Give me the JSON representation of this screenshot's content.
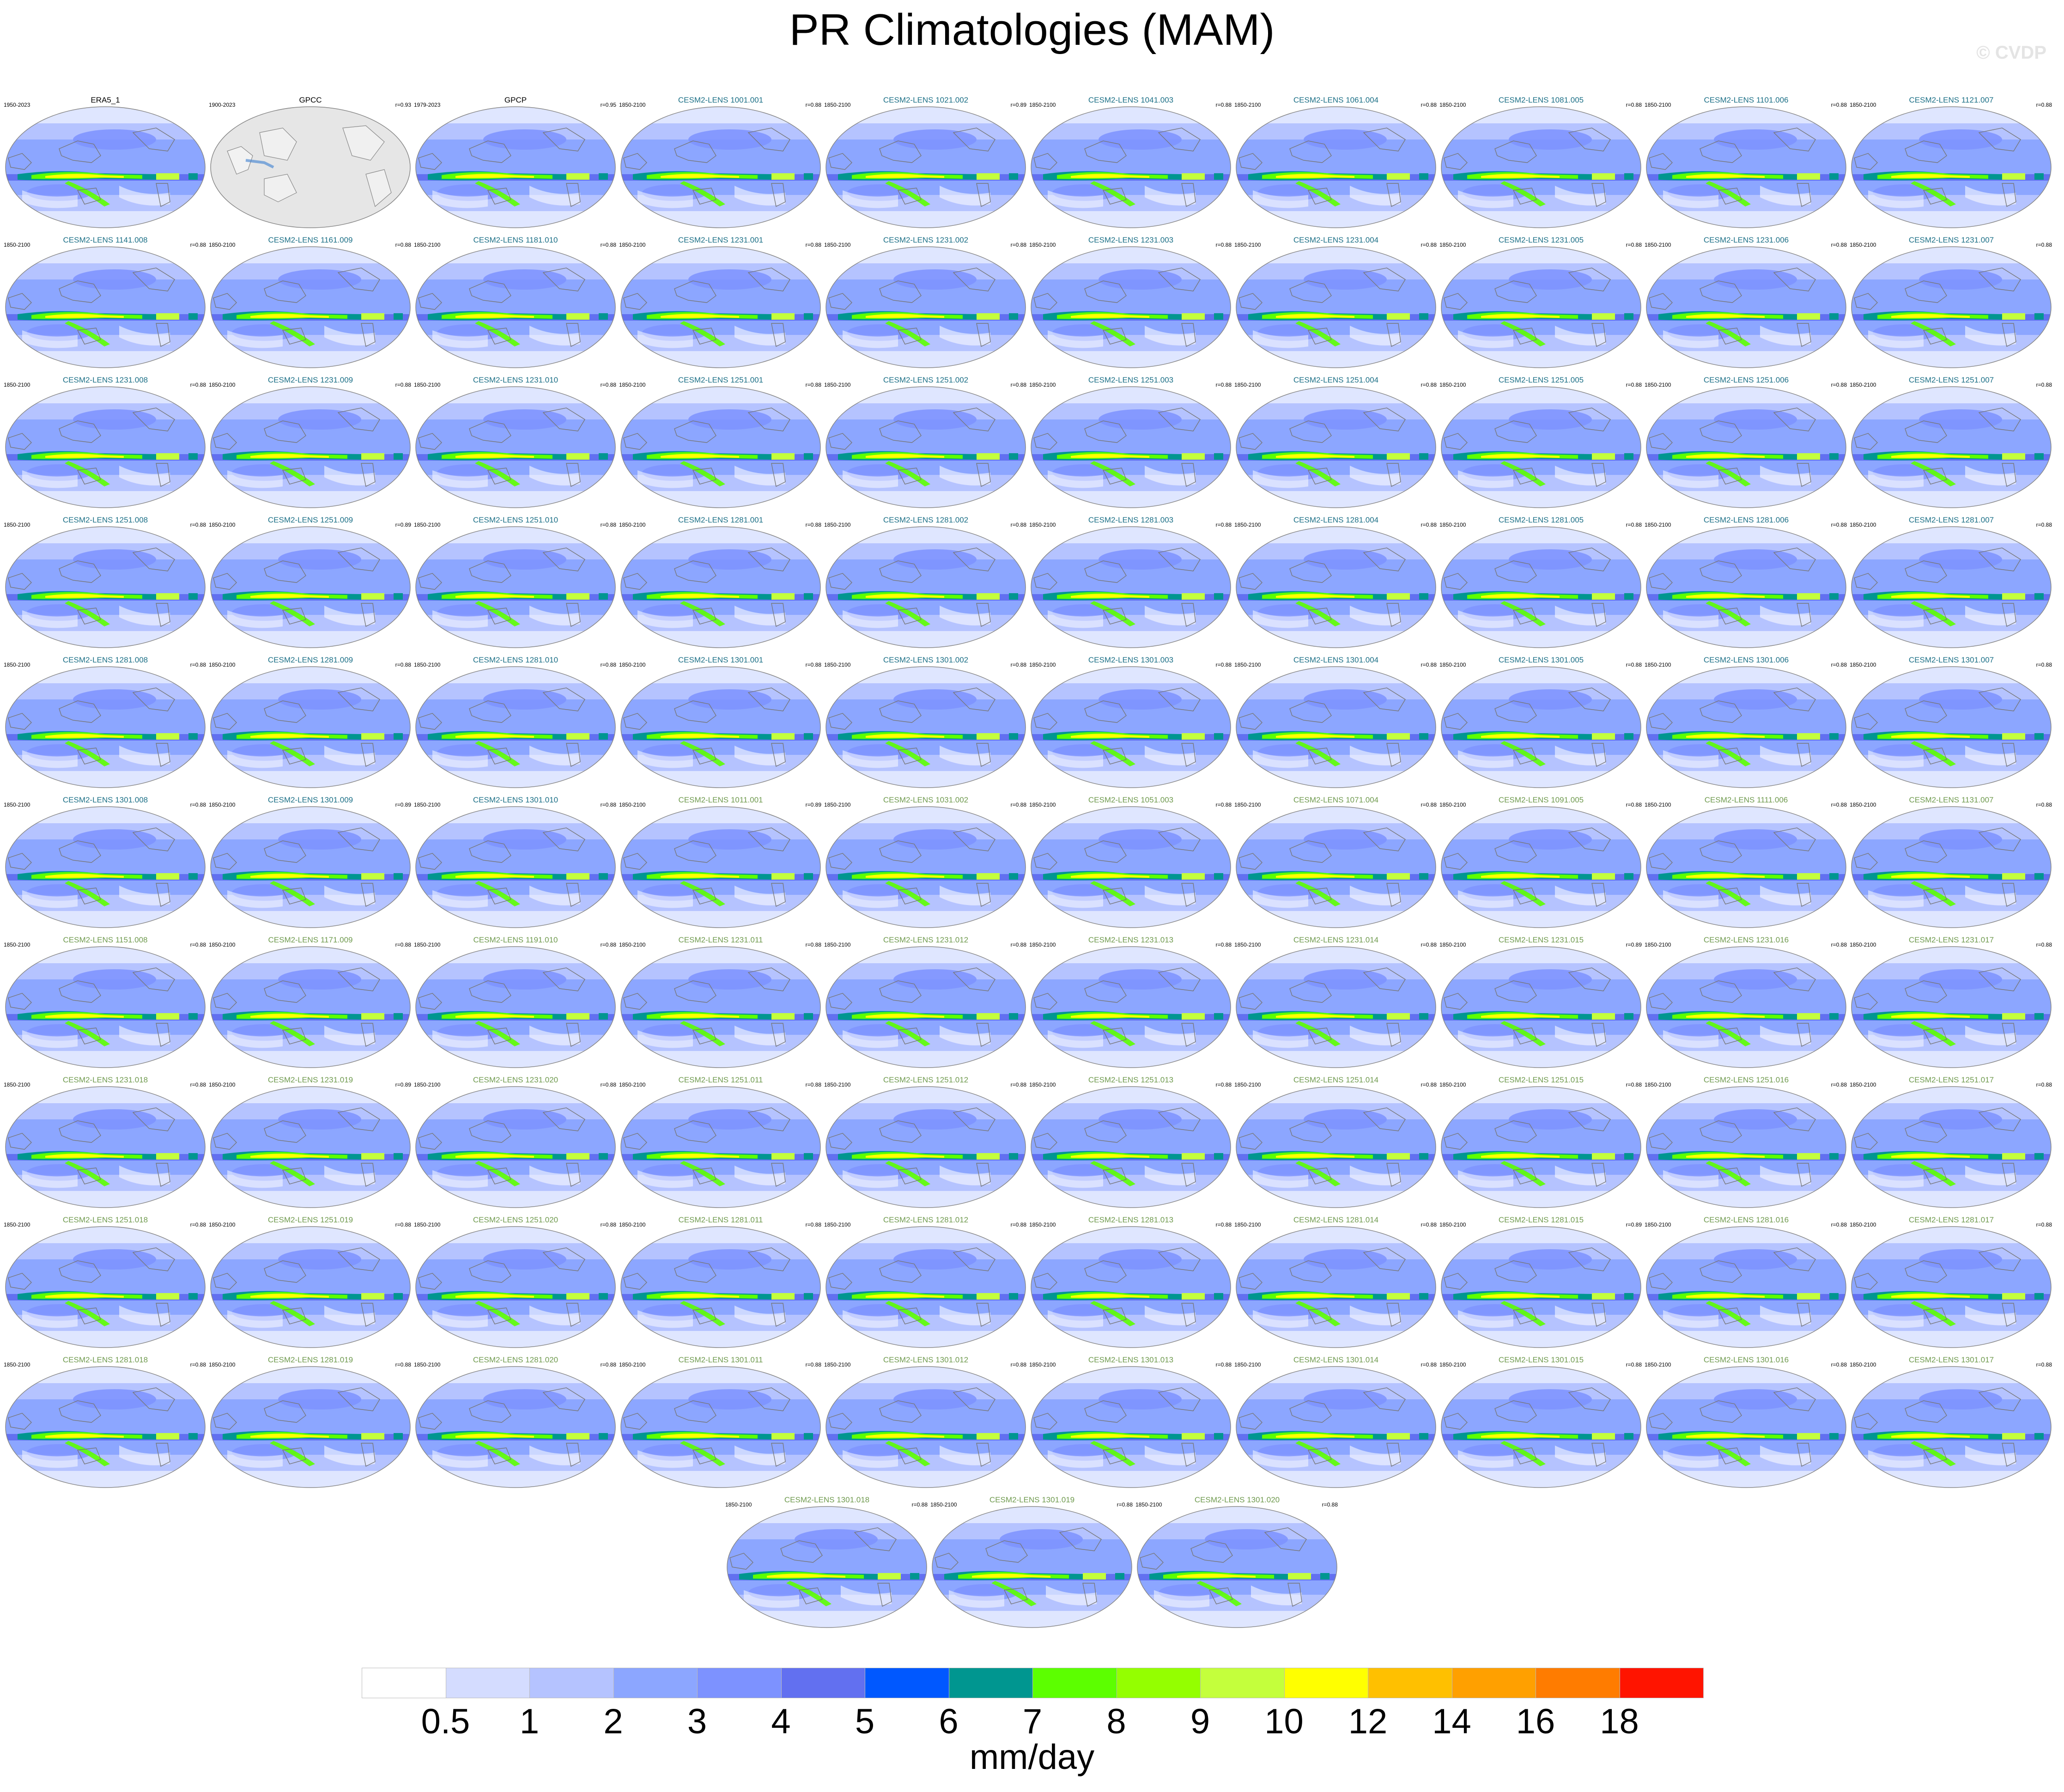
{
  "title": "PR Climatologies (MAM)",
  "watermark": "© CVDP",
  "colors": {
    "obs_title": "#000000",
    "model_title_a": "#1b6f86",
    "model_title_b": "#6f9a4e",
    "land_gray": "#e6e6e6",
    "ocean_base": "#8ca6ff"
  },
  "chart_data": {
    "type": "heatmap",
    "description_type": "small-multiple global precipitation maps",
    "panels": [
      {
        "title": "ERA5_1",
        "years": "1950-2023",
        "r": "",
        "kind": "obs"
      },
      {
        "title": "GPCC",
        "years": "1900-2023",
        "r": "r=0.93",
        "kind": "land"
      },
      {
        "title": "GPCP",
        "years": "1979-2023",
        "r": "r=0.95",
        "kind": "obs"
      },
      {
        "title": "CESM2-LENS 1001.001",
        "years": "1850-2100",
        "r": "r=0.88",
        "kind": "a"
      },
      {
        "title": "CESM2-LENS 1021.002",
        "years": "1850-2100",
        "r": "r=0.89",
        "kind": "a"
      },
      {
        "title": "CESM2-LENS 1041.003",
        "years": "1850-2100",
        "r": "r=0.88",
        "kind": "a"
      },
      {
        "title": "CESM2-LENS 1061.004",
        "years": "1850-2100",
        "r": "r=0.88",
        "kind": "a"
      },
      {
        "title": "CESM2-LENS 1081.005",
        "years": "1850-2100",
        "r": "r=0.88",
        "kind": "a"
      },
      {
        "title": "CESM2-LENS 1101.006",
        "years": "1850-2100",
        "r": "r=0.88",
        "kind": "a"
      },
      {
        "title": "CESM2-LENS 1121.007",
        "years": "1850-2100",
        "r": "r=0.88",
        "kind": "a"
      },
      {
        "title": "CESM2-LENS 1141.008",
        "years": "1850-2100",
        "r": "r=0.88",
        "kind": "a"
      },
      {
        "title": "CESM2-LENS 1161.009",
        "years": "1850-2100",
        "r": "r=0.88",
        "kind": "a"
      },
      {
        "title": "CESM2-LENS 1181.010",
        "years": "1850-2100",
        "r": "r=0.88",
        "kind": "a"
      },
      {
        "title": "CESM2-LENS 1231.001",
        "years": "1850-2100",
        "r": "r=0.88",
        "kind": "a"
      },
      {
        "title": "CESM2-LENS 1231.002",
        "years": "1850-2100",
        "r": "r=0.88",
        "kind": "a"
      },
      {
        "title": "CESM2-LENS 1231.003",
        "years": "1850-2100",
        "r": "r=0.88",
        "kind": "a"
      },
      {
        "title": "CESM2-LENS 1231.004",
        "years": "1850-2100",
        "r": "r=0.88",
        "kind": "a"
      },
      {
        "title": "CESM2-LENS 1231.005",
        "years": "1850-2100",
        "r": "r=0.88",
        "kind": "a"
      },
      {
        "title": "CESM2-LENS 1231.006",
        "years": "1850-2100",
        "r": "r=0.88",
        "kind": "a"
      },
      {
        "title": "CESM2-LENS 1231.007",
        "years": "1850-2100",
        "r": "r=0.88",
        "kind": "a"
      },
      {
        "title": "CESM2-LENS 1231.008",
        "years": "1850-2100",
        "r": "r=0.88",
        "kind": "a"
      },
      {
        "title": "CESM2-LENS 1231.009",
        "years": "1850-2100",
        "r": "r=0.88",
        "kind": "a"
      },
      {
        "title": "CESM2-LENS 1231.010",
        "years": "1850-2100",
        "r": "r=0.88",
        "kind": "a"
      },
      {
        "title": "CESM2-LENS 1251.001",
        "years": "1850-2100",
        "r": "r=0.88",
        "kind": "a"
      },
      {
        "title": "CESM2-LENS 1251.002",
        "years": "1850-2100",
        "r": "r=0.88",
        "kind": "a"
      },
      {
        "title": "CESM2-LENS 1251.003",
        "years": "1850-2100",
        "r": "r=0.88",
        "kind": "a"
      },
      {
        "title": "CESM2-LENS 1251.004",
        "years": "1850-2100",
        "r": "r=0.88",
        "kind": "a"
      },
      {
        "title": "CESM2-LENS 1251.005",
        "years": "1850-2100",
        "r": "r=0.88",
        "kind": "a"
      },
      {
        "title": "CESM2-LENS 1251.006",
        "years": "1850-2100",
        "r": "r=0.88",
        "kind": "a"
      },
      {
        "title": "CESM2-LENS 1251.007",
        "years": "1850-2100",
        "r": "r=0.88",
        "kind": "a"
      },
      {
        "title": "CESM2-LENS 1251.008",
        "years": "1850-2100",
        "r": "r=0.88",
        "kind": "a"
      },
      {
        "title": "CESM2-LENS 1251.009",
        "years": "1850-2100",
        "r": "r=0.89",
        "kind": "a"
      },
      {
        "title": "CESM2-LENS 1251.010",
        "years": "1850-2100",
        "r": "r=0.88",
        "kind": "a"
      },
      {
        "title": "CESM2-LENS 1281.001",
        "years": "1850-2100",
        "r": "r=0.88",
        "kind": "a"
      },
      {
        "title": "CESM2-LENS 1281.002",
        "years": "1850-2100",
        "r": "r=0.88",
        "kind": "a"
      },
      {
        "title": "CESM2-LENS 1281.003",
        "years": "1850-2100",
        "r": "r=0.88",
        "kind": "a"
      },
      {
        "title": "CESM2-LENS 1281.004",
        "years": "1850-2100",
        "r": "r=0.88",
        "kind": "a"
      },
      {
        "title": "CESM2-LENS 1281.005",
        "years": "1850-2100",
        "r": "r=0.88",
        "kind": "a"
      },
      {
        "title": "CESM2-LENS 1281.006",
        "years": "1850-2100",
        "r": "r=0.88",
        "kind": "a"
      },
      {
        "title": "CESM2-LENS 1281.007",
        "years": "1850-2100",
        "r": "r=0.88",
        "kind": "a"
      },
      {
        "title": "CESM2-LENS 1281.008",
        "years": "1850-2100",
        "r": "r=0.88",
        "kind": "a"
      },
      {
        "title": "CESM2-LENS 1281.009",
        "years": "1850-2100",
        "r": "r=0.88",
        "kind": "a"
      },
      {
        "title": "CESM2-LENS 1281.010",
        "years": "1850-2100",
        "r": "r=0.88",
        "kind": "a"
      },
      {
        "title": "CESM2-LENS 1301.001",
        "years": "1850-2100",
        "r": "r=0.88",
        "kind": "a"
      },
      {
        "title": "CESM2-LENS 1301.002",
        "years": "1850-2100",
        "r": "r=0.88",
        "kind": "a"
      },
      {
        "title": "CESM2-LENS 1301.003",
        "years": "1850-2100",
        "r": "r=0.88",
        "kind": "a"
      },
      {
        "title": "CESM2-LENS 1301.004",
        "years": "1850-2100",
        "r": "r=0.88",
        "kind": "a"
      },
      {
        "title": "CESM2-LENS 1301.005",
        "years": "1850-2100",
        "r": "r=0.88",
        "kind": "a"
      },
      {
        "title": "CESM2-LENS 1301.006",
        "years": "1850-2100",
        "r": "r=0.88",
        "kind": "a"
      },
      {
        "title": "CESM2-LENS 1301.007",
        "years": "1850-2100",
        "r": "r=0.88",
        "kind": "a"
      },
      {
        "title": "CESM2-LENS 1301.008",
        "years": "1850-2100",
        "r": "r=0.88",
        "kind": "a"
      },
      {
        "title": "CESM2-LENS 1301.009",
        "years": "1850-2100",
        "r": "r=0.89",
        "kind": "a"
      },
      {
        "title": "CESM2-LENS 1301.010",
        "years": "1850-2100",
        "r": "r=0.88",
        "kind": "a"
      },
      {
        "title": "CESM2-LENS 1011.001",
        "years": "1850-2100",
        "r": "r=0.89",
        "kind": "b"
      },
      {
        "title": "CESM2-LENS 1031.002",
        "years": "1850-2100",
        "r": "r=0.88",
        "kind": "b"
      },
      {
        "title": "CESM2-LENS 1051.003",
        "years": "1850-2100",
        "r": "r=0.88",
        "kind": "b"
      },
      {
        "title": "CESM2-LENS 1071.004",
        "years": "1850-2100",
        "r": "r=0.88",
        "kind": "b"
      },
      {
        "title": "CESM2-LENS 1091.005",
        "years": "1850-2100",
        "r": "r=0.88",
        "kind": "b"
      },
      {
        "title": "CESM2-LENS 1111.006",
        "years": "1850-2100",
        "r": "r=0.88",
        "kind": "b"
      },
      {
        "title": "CESM2-LENS 1131.007",
        "years": "1850-2100",
        "r": "r=0.88",
        "kind": "b"
      },
      {
        "title": "CESM2-LENS 1151.008",
        "years": "1850-2100",
        "r": "r=0.88",
        "kind": "b"
      },
      {
        "title": "CESM2-LENS 1171.009",
        "years": "1850-2100",
        "r": "r=0.88",
        "kind": "b"
      },
      {
        "title": "CESM2-LENS 1191.010",
        "years": "1850-2100",
        "r": "r=0.88",
        "kind": "b"
      },
      {
        "title": "CESM2-LENS 1231.011",
        "years": "1850-2100",
        "r": "r=0.88",
        "kind": "b"
      },
      {
        "title": "CESM2-LENS 1231.012",
        "years": "1850-2100",
        "r": "r=0.88",
        "kind": "b"
      },
      {
        "title": "CESM2-LENS 1231.013",
        "years": "1850-2100",
        "r": "r=0.88",
        "kind": "b"
      },
      {
        "title": "CESM2-LENS 1231.014",
        "years": "1850-2100",
        "r": "r=0.88",
        "kind": "b"
      },
      {
        "title": "CESM2-LENS 1231.015",
        "years": "1850-2100",
        "r": "r=0.89",
        "kind": "b"
      },
      {
        "title": "CESM2-LENS 1231.016",
        "years": "1850-2100",
        "r": "r=0.88",
        "kind": "b"
      },
      {
        "title": "CESM2-LENS 1231.017",
        "years": "1850-2100",
        "r": "r=0.88",
        "kind": "b"
      },
      {
        "title": "CESM2-LENS 1231.018",
        "years": "1850-2100",
        "r": "r=0.88",
        "kind": "b"
      },
      {
        "title": "CESM2-LENS 1231.019",
        "years": "1850-2100",
        "r": "r=0.89",
        "kind": "b"
      },
      {
        "title": "CESM2-LENS 1231.020",
        "years": "1850-2100",
        "r": "r=0.88",
        "kind": "b"
      },
      {
        "title": "CESM2-LENS 1251.011",
        "years": "1850-2100",
        "r": "r=0.88",
        "kind": "b"
      },
      {
        "title": "CESM2-LENS 1251.012",
        "years": "1850-2100",
        "r": "r=0.88",
        "kind": "b"
      },
      {
        "title": "CESM2-LENS 1251.013",
        "years": "1850-2100",
        "r": "r=0.88",
        "kind": "b"
      },
      {
        "title": "CESM2-LENS 1251.014",
        "years": "1850-2100",
        "r": "r=0.88",
        "kind": "b"
      },
      {
        "title": "CESM2-LENS 1251.015",
        "years": "1850-2100",
        "r": "r=0.88",
        "kind": "b"
      },
      {
        "title": "CESM2-LENS 1251.016",
        "years": "1850-2100",
        "r": "r=0.88",
        "kind": "b"
      },
      {
        "title": "CESM2-LENS 1251.017",
        "years": "1850-2100",
        "r": "r=0.88",
        "kind": "b"
      },
      {
        "title": "CESM2-LENS 1251.018",
        "years": "1850-2100",
        "r": "r=0.88",
        "kind": "b"
      },
      {
        "title": "CESM2-LENS 1251.019",
        "years": "1850-2100",
        "r": "r=0.88",
        "kind": "b"
      },
      {
        "title": "CESM2-LENS 1251.020",
        "years": "1850-2100",
        "r": "r=0.88",
        "kind": "b"
      },
      {
        "title": "CESM2-LENS 1281.011",
        "years": "1850-2100",
        "r": "r=0.88",
        "kind": "b"
      },
      {
        "title": "CESM2-LENS 1281.012",
        "years": "1850-2100",
        "r": "r=0.88",
        "kind": "b"
      },
      {
        "title": "CESM2-LENS 1281.013",
        "years": "1850-2100",
        "r": "r=0.88",
        "kind": "b"
      },
      {
        "title": "CESM2-LENS 1281.014",
        "years": "1850-2100",
        "r": "r=0.88",
        "kind": "b"
      },
      {
        "title": "CESM2-LENS 1281.015",
        "years": "1850-2100",
        "r": "r=0.89",
        "kind": "b"
      },
      {
        "title": "CESM2-LENS 1281.016",
        "years": "1850-2100",
        "r": "r=0.88",
        "kind": "b"
      },
      {
        "title": "CESM2-LENS 1281.017",
        "years": "1850-2100",
        "r": "r=0.88",
        "kind": "b"
      },
      {
        "title": "CESM2-LENS 1281.018",
        "years": "1850-2100",
        "r": "r=0.88",
        "kind": "b"
      },
      {
        "title": "CESM2-LENS 1281.019",
        "years": "1850-2100",
        "r": "r=0.88",
        "kind": "b"
      },
      {
        "title": "CESM2-LENS 1281.020",
        "years": "1850-2100",
        "r": "r=0.88",
        "kind": "b"
      },
      {
        "title": "CESM2-LENS 1301.011",
        "years": "1850-2100",
        "r": "r=0.88",
        "kind": "b"
      },
      {
        "title": "CESM2-LENS 1301.012",
        "years": "1850-2100",
        "r": "r=0.88",
        "kind": "b"
      },
      {
        "title": "CESM2-LENS 1301.013",
        "years": "1850-2100",
        "r": "r=0.88",
        "kind": "b"
      },
      {
        "title": "CESM2-LENS 1301.014",
        "years": "1850-2100",
        "r": "r=0.88",
        "kind": "b"
      },
      {
        "title": "CESM2-LENS 1301.015",
        "years": "1850-2100",
        "r": "r=0.88",
        "kind": "b"
      },
      {
        "title": "CESM2-LENS 1301.016",
        "years": "1850-2100",
        "r": "r=0.88",
        "kind": "b"
      },
      {
        "title": "CESM2-LENS 1301.017",
        "years": "1850-2100",
        "r": "r=0.88",
        "kind": "b"
      },
      {
        "title": "CESM2-LENS 1301.018",
        "years": "1850-2100",
        "r": "r=0.88",
        "kind": "b"
      },
      {
        "title": "CESM2-LENS 1301.019",
        "years": "1850-2100",
        "r": "r=0.88",
        "kind": "b"
      },
      {
        "title": "CESM2-LENS 1301.020",
        "years": "1850-2100",
        "r": "r=0.88",
        "kind": "b"
      }
    ],
    "colorbar": {
      "levels": [
        "0.5",
        "1",
        "2",
        "3",
        "4",
        "5",
        "6",
        "7",
        "8",
        "9",
        "10",
        "12",
        "14",
        "16",
        "18"
      ],
      "colors": [
        "#ffffff",
        "#d4dcff",
        "#b5c3ff",
        "#8ca6ff",
        "#7d92ff",
        "#6270f0",
        "#0058ff",
        "#009690",
        "#5cff00",
        "#94ff00",
        "#c4ff3c",
        "#ffff00",
        "#ffc000",
        "#ffa000",
        "#ff7c00",
        "#ff1400"
      ],
      "units": "mm/day"
    }
  }
}
